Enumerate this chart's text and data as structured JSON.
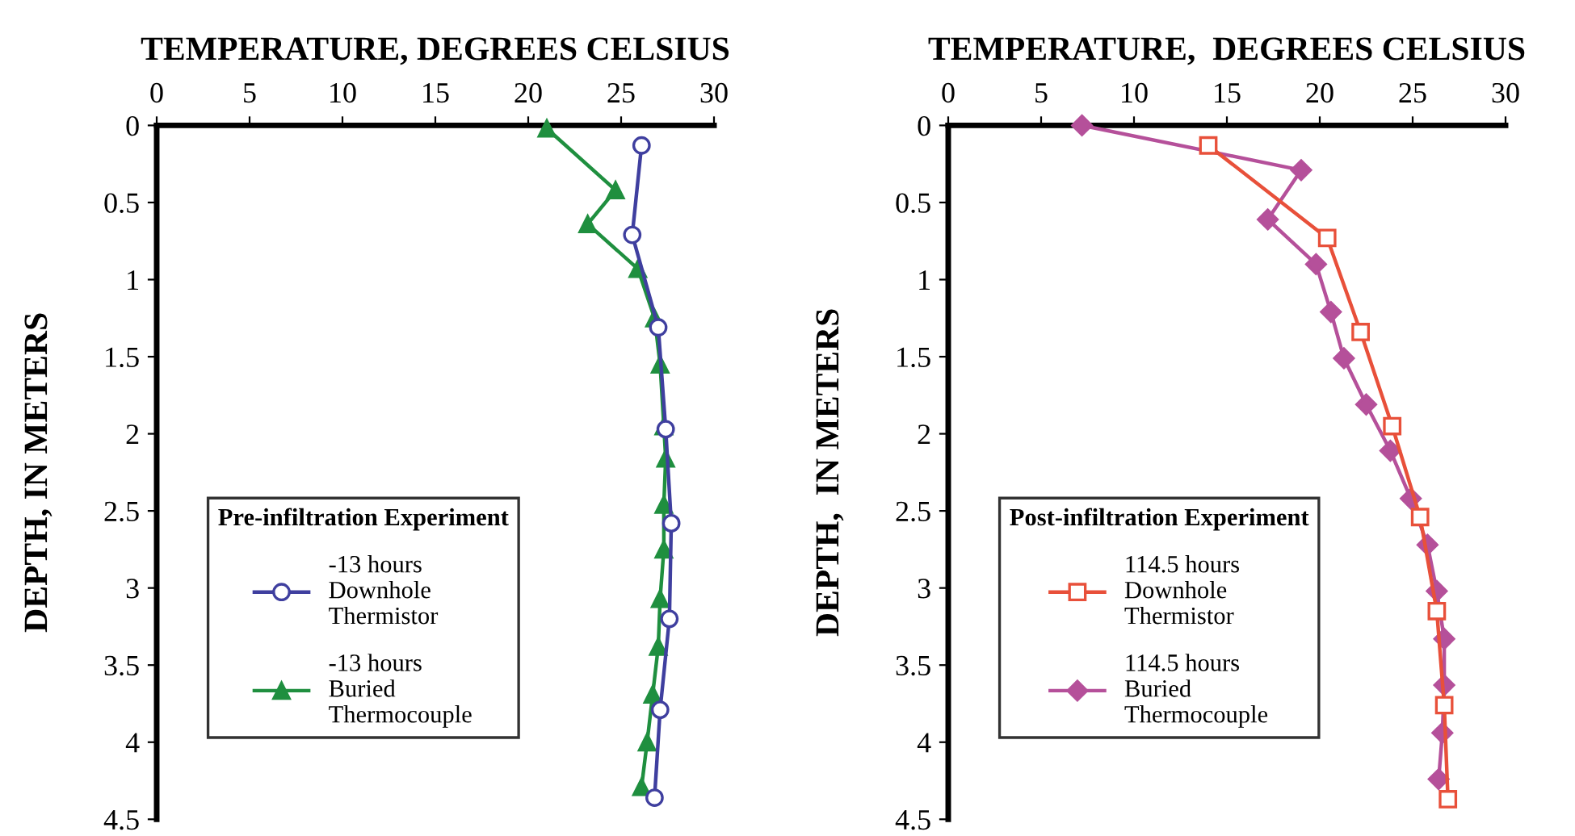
{
  "chart_data": [
    {
      "type": "line",
      "xlabel": "TEMPERATURE, DEGREES CELSIUS",
      "ylabel": "DEPTH, IN METERS",
      "legend_title": "Pre-infiltration Experiment",
      "legend": "bottom left",
      "grid": false,
      "xlim": [
        0,
        30
      ],
      "xticks": [
        0,
        5,
        10,
        15,
        20,
        25,
        30
      ],
      "ylim": [
        4.5,
        0
      ],
      "yticks": [
        0,
        0.5,
        1,
        1.5,
        2,
        2.5,
        3,
        3.5,
        4,
        4.5
      ],
      "series": [
        {
          "name": "-13 hours\nDownhole\nThermistor",
          "color": "#3f3f9f",
          "marker": "circle",
          "x": [
            26.1,
            25.6,
            27.0,
            27.4,
            27.7,
            27.6,
            27.1,
            26.8
          ],
          "values": [
            0.13,
            0.71,
            1.31,
            1.97,
            2.58,
            3.2,
            3.79,
            4.36
          ]
        },
        {
          "name": "-13 hours\nBuried\nThermocouple",
          "color": "#1f8f3f",
          "marker": "triangle",
          "x": [
            21.0,
            24.7,
            23.2,
            25.9,
            26.8,
            27.1,
            27.3,
            27.4,
            27.3,
            27.3,
            27.1,
            27.0,
            26.7,
            26.4,
            26.1
          ],
          "values": [
            0.02,
            0.42,
            0.64,
            0.93,
            1.25,
            1.55,
            1.95,
            2.16,
            2.46,
            2.75,
            3.07,
            3.38,
            3.69,
            4.0,
            4.29
          ]
        }
      ]
    },
    {
      "type": "line",
      "xlabel": "TEMPERATURE,  DEGREES CELSIUS",
      "ylabel": "DEPTH,  IN METERS",
      "legend_title": "Post-infiltration Experiment",
      "legend": "bottom left",
      "grid": false,
      "xlim": [
        0,
        30
      ],
      "xticks": [
        0,
        5,
        10,
        15,
        20,
        25,
        30
      ],
      "ylim": [
        4.5,
        0
      ],
      "yticks": [
        0,
        0.5,
        1,
        1.5,
        2,
        2.5,
        3,
        3.5,
        4,
        4.5
      ],
      "series": [
        {
          "name": "114.5 hours\nDownhole\nThermistor",
          "color": "#e8503a",
          "marker": "square",
          "x": [
            14.0,
            20.4,
            22.2,
            23.9,
            25.4,
            26.3,
            26.7,
            26.9
          ],
          "values": [
            0.13,
            0.73,
            1.34,
            1.95,
            2.54,
            3.15,
            3.76,
            4.37
          ]
        },
        {
          "name": "114.5 hours\nBuried\nThermocouple",
          "color": "#b5509a",
          "marker": "diamond",
          "x": [
            7.2,
            19.0,
            17.2,
            19.8,
            20.6,
            21.3,
            22.5,
            23.8,
            24.9,
            25.8,
            26.3,
            26.7,
            26.7,
            26.6,
            26.4
          ],
          "values": [
            0.0,
            0.29,
            0.61,
            0.9,
            1.21,
            1.51,
            1.81,
            2.11,
            2.42,
            2.72,
            3.02,
            3.33,
            3.63,
            3.94,
            4.24
          ]
        }
      ]
    }
  ]
}
